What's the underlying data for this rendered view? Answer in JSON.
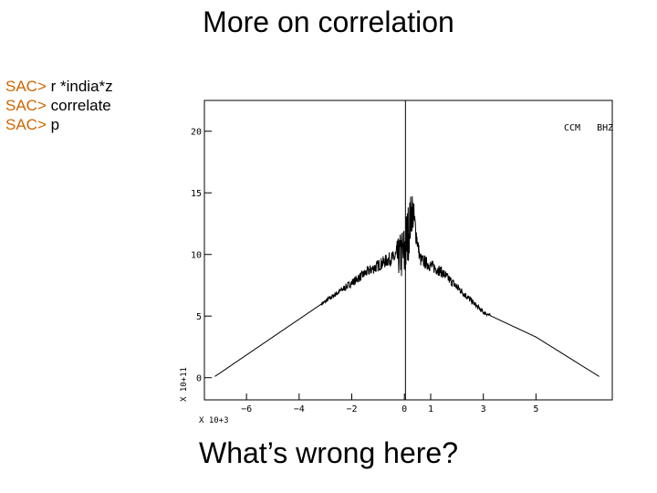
{
  "slide": {
    "title": "More on correlation",
    "question": "What’s wrong here?"
  },
  "commands": [
    {
      "prompt": "SAC>",
      "text": " r *india*z"
    },
    {
      "prompt": "SAC>",
      "text": " correlate"
    },
    {
      "prompt": "SAC>",
      "text": " p"
    }
  ],
  "colors": {
    "prompt": "#cc6600",
    "trace": "#000000"
  },
  "chart_data": {
    "type": "line",
    "title": "",
    "station_label": "CCM   BHZ",
    "xlabel": "",
    "ylabel": "",
    "x_multiplier": "X 10+3",
    "y_multiplier": "X 10+11",
    "xlim": [
      -7.6,
      7.9
    ],
    "ylim": [
      -1.8,
      22.5
    ],
    "x_ticks": [
      -6,
      -4,
      -2,
      0,
      1,
      3,
      5
    ],
    "y_ticks": [
      0,
      5,
      10,
      15,
      20
    ],
    "grid": false,
    "legend": "none",
    "series": [
      {
        "x": [
          -7.2,
          -5.0,
          -3.0,
          -1.4,
          -0.6,
          0.0,
          0.3,
          0.6,
          1.4,
          3.0,
          5.0,
          7.4
        ],
        "y": [
          0.1,
          3.3,
          6.2,
          8.6,
          9.6,
          10.0,
          13.7,
          9.6,
          8.6,
          5.3,
          3.3,
          0.1
        ]
      }
    ],
    "vertical_marker_x": 0.04
  }
}
